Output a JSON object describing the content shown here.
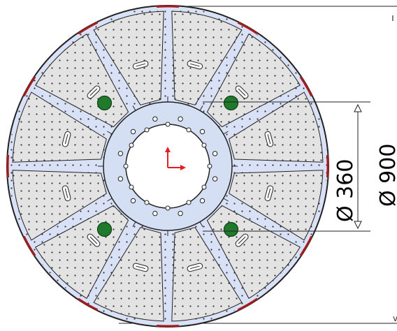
{
  "drawing": {
    "view": "front",
    "dimensions": [
      {
        "id": "inner",
        "label": "Ø 360"
      },
      {
        "id": "outer",
        "label": "Ø 900"
      }
    ],
    "palette": {
      "sector_blue": "#d9e1f6",
      "sector_grey": "#e3e3e3",
      "hub": "#d5dff4",
      "bore": "#ffffff",
      "outline": "#222222",
      "rim_accent": "#a51c1c",
      "bolt_green": "#1f7a2c",
      "axis_red": "#e02020"
    },
    "counts": {
      "grey_plates": 12,
      "blue_sectors": 12,
      "green_bolts": 4,
      "bore_holes": 12
    }
  }
}
